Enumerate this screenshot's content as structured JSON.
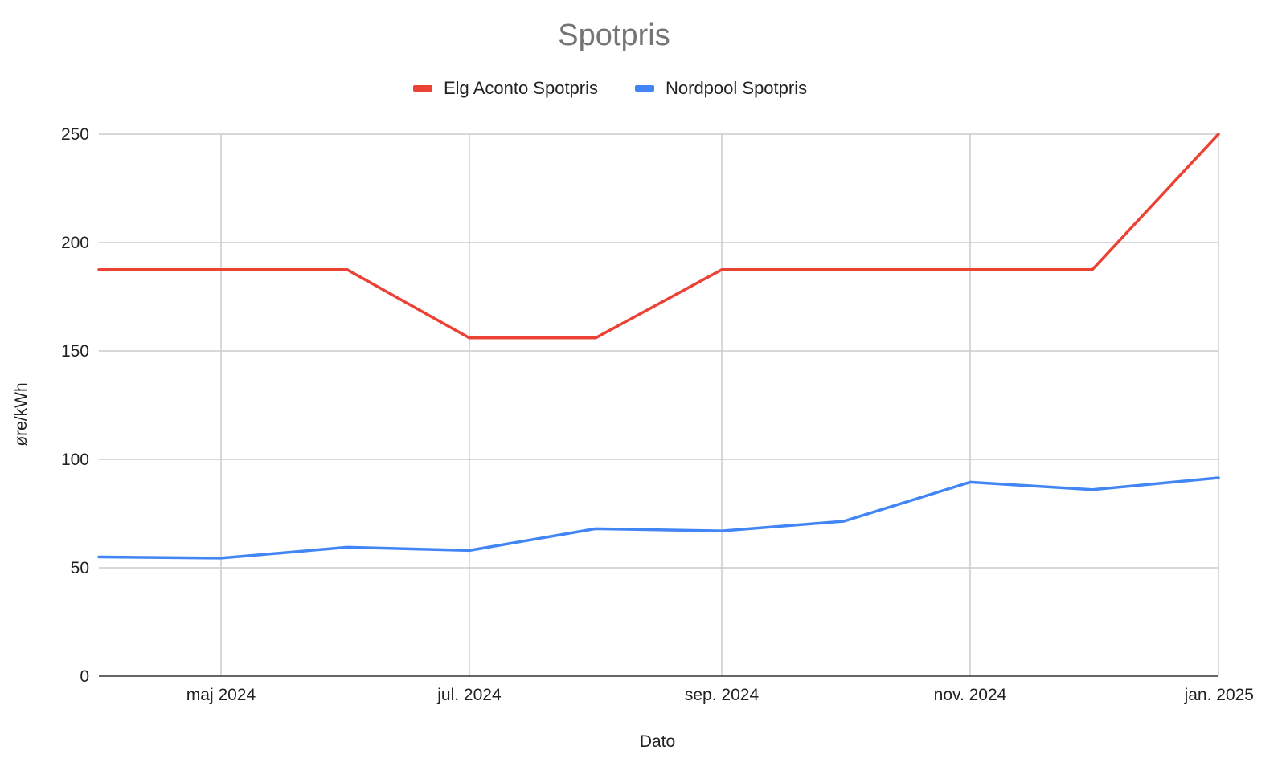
{
  "chart_data": {
    "type": "line",
    "title": "Spotpris",
    "xlabel": "Dato",
    "ylabel": "øre/kWh",
    "ylim": [
      0,
      250
    ],
    "yticks": [
      0,
      50,
      100,
      150,
      200,
      250
    ],
    "xlim": [
      "2024-04-01",
      "2025-01-01"
    ],
    "xticks": [
      {
        "date": "2024-05-01",
        "label": "maj 2024"
      },
      {
        "date": "2024-07-01",
        "label": "jul. 2024"
      },
      {
        "date": "2024-09-01",
        "label": "sep. 2024"
      },
      {
        "date": "2024-11-01",
        "label": "nov. 2024"
      },
      {
        "date": "2025-01-01",
        "label": "jan. 2025"
      }
    ],
    "x": [
      "2024-04-01",
      "2024-05-01",
      "2024-06-01",
      "2024-07-01",
      "2024-08-01",
      "2024-09-01",
      "2024-10-01",
      "2024-11-01",
      "2024-12-01",
      "2025-01-01"
    ],
    "series": [
      {
        "name": "Elg Aconto Spotpris",
        "color": "#ea4335",
        "values": [
          187.5,
          187.5,
          187.5,
          156,
          156,
          187.5,
          187.5,
          187.5,
          187.5,
          250
        ]
      },
      {
        "name": "Nordpool Spotpris",
        "color": "#4285f4",
        "values": [
          55,
          54.5,
          59.5,
          58,
          68,
          67,
          71.5,
          89.5,
          86,
          91.5
        ]
      }
    ],
    "grid": true,
    "legend_position": "top"
  }
}
